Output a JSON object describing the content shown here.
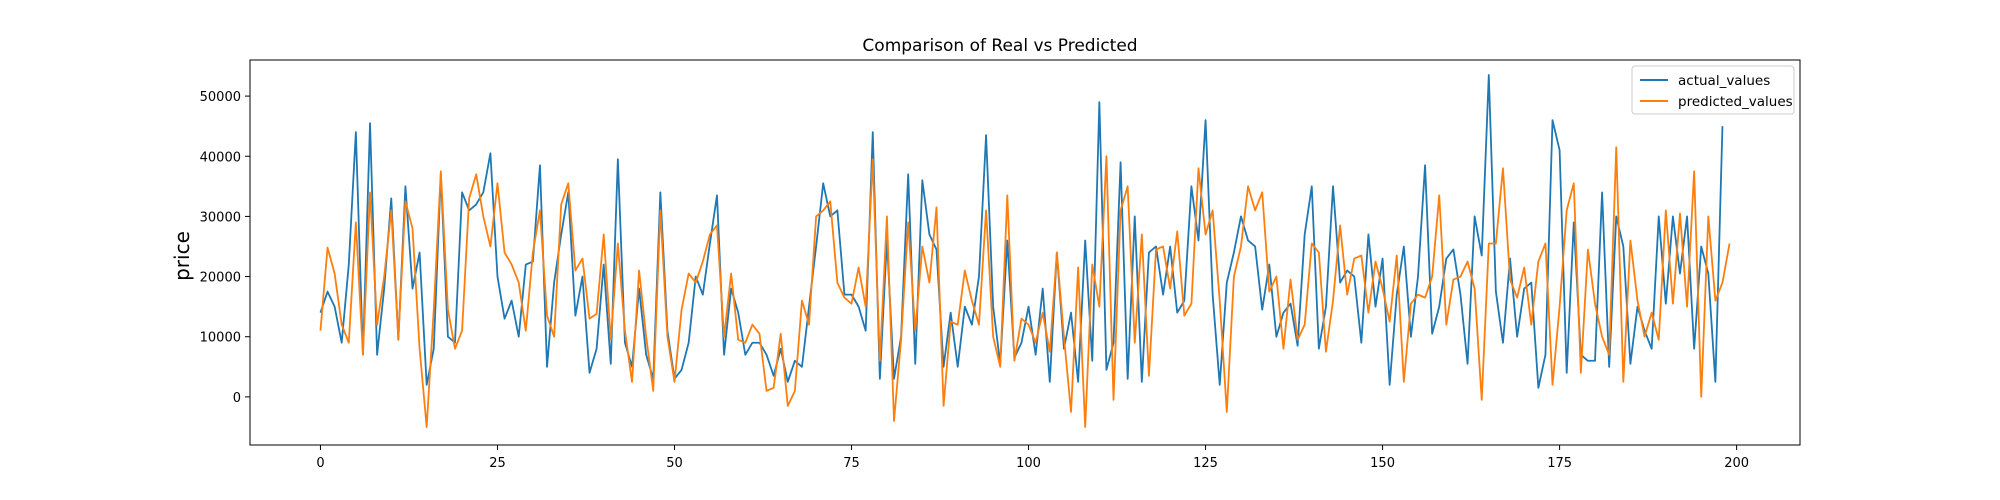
{
  "chart_data": {
    "type": "line",
    "title": "Comparison of Real vs Predicted",
    "xlabel": "",
    "ylabel": "price",
    "xlim": [
      -9.95,
      208.95
    ],
    "ylim": [
      -8000,
      56000
    ],
    "x_ticks": [
      0,
      25,
      50,
      75,
      100,
      125,
      150,
      175,
      200
    ],
    "y_ticks": [
      0,
      10000,
      20000,
      30000,
      40000,
      50000
    ],
    "grid": false,
    "legend_position": "top-right",
    "series": [
      {
        "name": "actual_values",
        "color": "#1f77b4",
        "values": [
          14000,
          17500,
          15000,
          9000,
          22000,
          44000,
          7000,
          45500,
          7000,
          18000,
          33000,
          9500,
          35000,
          18000,
          24000,
          2000,
          8000,
          37000,
          10000,
          9000,
          34000,
          31000,
          32000,
          34000,
          40500,
          20000,
          13000,
          16000,
          10000,
          22000,
          22500,
          38500,
          5000,
          19000,
          27000,
          34000,
          13500,
          20000,
          4000,
          8000,
          22000,
          5500,
          39500,
          9000,
          5000,
          18000,
          7000,
          3000,
          34000,
          11000,
          3000,
          4500,
          9000,
          20000,
          17000,
          25500,
          33500,
          7000,
          18000,
          14000,
          7000,
          9000,
          9000,
          7000,
          3500,
          8000,
          2500,
          6000,
          5000,
          15000,
          25000,
          35500,
          30000,
          31000,
          17000,
          17000,
          15000,
          11000,
          44000,
          3000,
          26000,
          3000,
          10000,
          37000,
          5500,
          36000,
          27000,
          24500,
          5000,
          14000,
          5000,
          15000,
          12000,
          20000,
          43500,
          15000,
          5500,
          26000,
          6500,
          9000,
          15000,
          7000,
          18000,
          2500,
          24000,
          8000,
          14000,
          2500,
          26000,
          6000,
          49000,
          4500,
          9000,
          39000,
          3000,
          30000,
          2500,
          24000,
          25000,
          17000,
          25000,
          14000,
          16000,
          35000,
          26000,
          46000,
          17000,
          2000,
          19000,
          24000,
          30000,
          26000,
          25000,
          14500,
          22000,
          10000,
          14000,
          15500,
          8500,
          27000,
          35000,
          8000,
          15000,
          35000,
          19000,
          21000,
          20000,
          9000,
          27000,
          15000,
          23000,
          2000,
          17000,
          25000,
          10000,
          20000,
          38500,
          10500,
          15000,
          23000,
          24500,
          17000,
          5500,
          30000,
          23500,
          53500,
          17500,
          9000,
          23000,
          10000,
          18000,
          19000,
          1500,
          7000,
          46000,
          41000,
          4000,
          29000,
          7000,
          6000,
          6000,
          34000,
          5000,
          30000,
          25000,
          5500,
          15000,
          11000,
          8000,
          30000,
          15500,
          30000,
          20500,
          30000,
          8000,
          25000,
          20500,
          2500,
          45000
        ]
      },
      {
        "name": "predicted_values",
        "color": "#ff7f0e",
        "values": [
          11000,
          24800,
          20500,
          12000,
          9000,
          29000,
          7000,
          34000,
          12000,
          20000,
          31000,
          9600,
          32500,
          28000,
          8000,
          -5000,
          14500,
          37500,
          14500,
          8000,
          11000,
          33000,
          37000,
          30000,
          25000,
          35500,
          24000,
          22000,
          19000,
          11000,
          24000,
          31000,
          13500,
          10000,
          32000,
          35500,
          21000,
          23000,
          13000,
          13800,
          27000,
          9500,
          25500,
          11000,
          2500,
          21000,
          10000,
          1000,
          31000,
          10000,
          2500,
          14500,
          20500,
          19000,
          22500,
          27000,
          28500,
          10000,
          20500,
          9500,
          9000,
          12000,
          10500,
          1000,
          1500,
          10500,
          -1500,
          1000,
          16000,
          12000,
          30000,
          31000,
          32500,
          19000,
          16500,
          15500,
          21500,
          15000,
          39500,
          6000,
          30000,
          -4000,
          9500,
          29000,
          11000,
          25000,
          19000,
          31500,
          -1500,
          12500,
          12000,
          21000,
          16000,
          12000,
          31000,
          10000,
          5000,
          33500,
          6000,
          13000,
          12000,
          9000,
          14000,
          7500,
          24000,
          10000,
          -2500,
          21500,
          -5000,
          22000,
          15000,
          40000,
          -500,
          31000,
          35000,
          9000,
          27000,
          3500,
          24500,
          25000,
          18000,
          27500,
          13500,
          15500,
          38000,
          27000,
          31000,
          16000,
          -2500,
          20000,
          25000,
          35000,
          31000,
          34000,
          17500,
          20000,
          8000,
          19500,
          9500,
          12000,
          25500,
          24000,
          7500,
          16000,
          28500,
          17000,
          23000,
          23500,
          14000,
          22500,
          18000,
          12500,
          23500,
          2500,
          15500,
          17000,
          16500,
          20000,
          33500,
          12000,
          19500,
          20000,
          22500,
          18000,
          -500,
          25500,
          25500,
          38000,
          19500,
          16500,
          21500,
          12000,
          22500,
          25500,
          2000,
          15000,
          31000,
          35500,
          4000,
          24500,
          15500,
          10000,
          7000,
          41500,
          2500,
          26000,
          16000,
          10000,
          14000,
          9500,
          31000,
          15500,
          30500,
          15000,
          37500,
          0,
          30000,
          16000,
          19000,
          25500
        ]
      }
    ]
  }
}
